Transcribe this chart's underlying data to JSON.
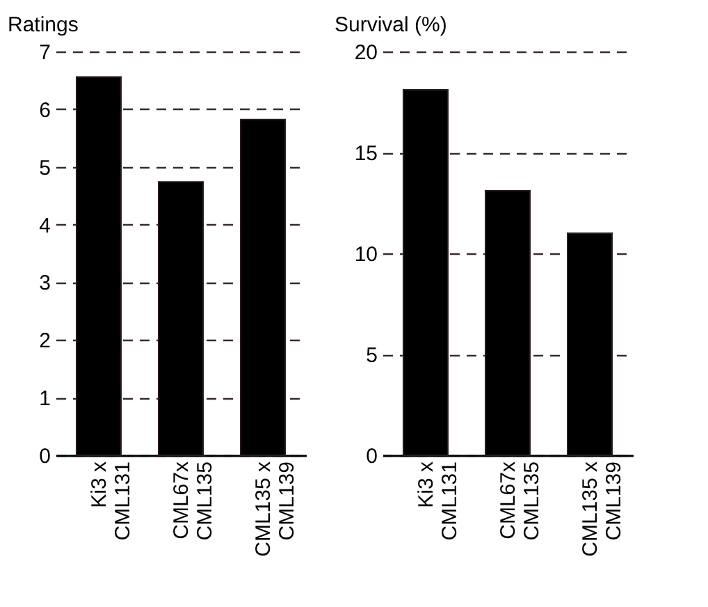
{
  "chart_data": [
    {
      "type": "bar",
      "ylabel": "Ratings",
      "categories": [
        "Ki3 x\nCML131",
        "CML67x\nCML135",
        "CML135 x\nCML139"
      ],
      "values": [
        6.56,
        4.74,
        5.82
      ],
      "color": "#000000",
      "ylim": [
        0,
        7
      ],
      "yticks": [
        0,
        1,
        2,
        3,
        4,
        5,
        6,
        7
      ],
      "grid": "y"
    },
    {
      "type": "bar",
      "ylabel": "Survival (%)",
      "categories": [
        "Ki3 x\nCML131",
        "CML67x\nCML135",
        "CML135 x\nCML139"
      ],
      "values": [
        18.1,
        13.1,
        11.0
      ],
      "color": "#000000",
      "ylim": [
        0,
        20
      ],
      "yticks": [
        0,
        5,
        10,
        15,
        20
      ],
      "grid": "y"
    }
  ]
}
